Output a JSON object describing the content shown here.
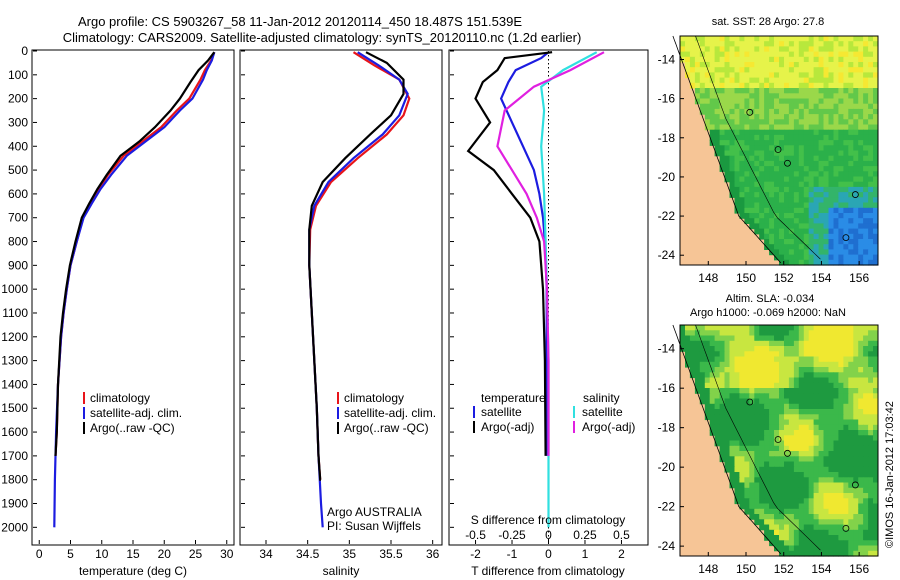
{
  "header": {
    "title_line1": "Argo profile: CS 5903267_58 11-Jan-2012 20120114_450 18.487S 151.539E",
    "title_line2": "Climatology: CARS2009. Satellite-adjusted climatology: synTS_20120110.nc (1.2d earlier)"
  },
  "colors": {
    "climatology": "#e8141a",
    "satellite": "#1c1ce0",
    "argo": "#000000",
    "cyan": "#30e0e0",
    "magenta": "#e020e0",
    "land": "#f6c596"
  },
  "chart_data": [
    {
      "type": "line",
      "id": "temperature",
      "xlabel": "temperature (deg C)",
      "xlim": [
        -1,
        31
      ],
      "xticks": [
        0,
        5,
        10,
        15,
        20,
        25,
        30
      ],
      "xticklabels": [
        "0",
        "5",
        "10",
        "15",
        "20",
        "25",
        "30"
      ],
      "ylim": [
        0,
        2070
      ],
      "yticks": [
        0,
        100,
        200,
        300,
        400,
        500,
        600,
        700,
        800,
        900,
        1000,
        1100,
        1200,
        1300,
        1400,
        1500,
        1600,
        1700,
        1800,
        1900,
        2000
      ],
      "yticklabels": [
        "0",
        "100",
        "200",
        "300",
        "400",
        "500",
        "600",
        "700",
        "800",
        "900",
        "1000",
        "1100",
        "1200",
        "1300",
        "1400",
        "1500",
        "1600",
        "1700",
        "1800",
        "1900",
        "2000"
      ],
      "legend": [
        "climatology",
        "satellite-adj. clim.",
        "Argo(..raw -QC)"
      ],
      "series": [
        {
          "name": "climatology",
          "color": "climatology",
          "x": [
            28.0,
            27.5,
            26.5,
            25.8,
            24.0,
            22.0,
            19.5,
            16.5,
            13.5,
            11.0,
            9.5,
            8.2,
            7.0,
            6.0,
            5.0,
            4.4,
            3.9,
            3.5,
            3.0,
            2.8,
            2.6,
            2.6
          ],
          "y": [
            5,
            40,
            80,
            120,
            200,
            250,
            320,
            380,
            440,
            520,
            580,
            640,
            700,
            800,
            900,
            1000,
            1100,
            1200,
            1400,
            1600,
            1700,
            1700
          ]
        },
        {
          "name": "satellite",
          "color": "satellite",
          "x": [
            28.0,
            27.6,
            26.8,
            26.2,
            24.5,
            22.5,
            20.0,
            17.0,
            14.0,
            11.5,
            9.8,
            8.4,
            7.1,
            6.0,
            5.0,
            4.4,
            3.9,
            3.5,
            3.0,
            2.7,
            2.5,
            2.4
          ],
          "y": [
            5,
            40,
            80,
            120,
            200,
            250,
            320,
            380,
            440,
            520,
            580,
            640,
            700,
            800,
            900,
            1000,
            1100,
            1200,
            1400,
            1600,
            1800,
            2000
          ]
        },
        {
          "name": "argo",
          "color": "argo",
          "x": [
            28.0,
            27.0,
            25.5,
            24.2,
            22.5,
            21.0,
            18.5,
            16.0,
            13.0,
            10.8,
            9.3,
            8.0,
            6.8,
            5.8,
            4.9,
            4.3,
            3.8,
            3.4,
            3.0,
            2.8,
            2.6,
            2.6
          ],
          "y": [
            5,
            40,
            80,
            130,
            200,
            250,
            320,
            380,
            440,
            520,
            580,
            640,
            700,
            800,
            900,
            1000,
            1100,
            1200,
            1400,
            1600,
            1700,
            1700
          ]
        }
      ]
    },
    {
      "type": "line",
      "id": "salinity",
      "xlabel": "salinity",
      "xlim": [
        33.7,
        36.1
      ],
      "xticks": [
        34,
        34.5,
        35,
        35.5,
        36
      ],
      "xticklabels": [
        "34",
        "34.5",
        "35",
        "35.5",
        "36"
      ],
      "legend": [
        "climatology",
        "satellite-adj. clim.",
        "Argo(..raw -QC)"
      ],
      "annotation_line1": "Argo AUSTRALIA",
      "annotation_line2": "PI: Susan Wijffels",
      "series": [
        {
          "name": "climatology",
          "color": "climatology",
          "x": [
            35.05,
            35.3,
            35.6,
            35.72,
            35.65,
            35.45,
            35.1,
            34.78,
            34.6,
            34.53,
            34.52,
            34.55,
            34.58,
            34.61,
            34.63,
            34.65,
            34.66
          ],
          "y": [
            5,
            60,
            120,
            200,
            270,
            350,
            450,
            550,
            650,
            750,
            900,
            1100,
            1300,
            1500,
            1700,
            1800,
            1800
          ]
        },
        {
          "name": "satellite",
          "color": "satellite",
          "x": [
            35.1,
            35.35,
            35.6,
            35.7,
            35.6,
            35.4,
            35.05,
            34.75,
            34.58,
            34.52,
            34.52,
            34.55,
            34.58,
            34.61,
            34.63,
            34.66,
            34.68
          ],
          "y": [
            5,
            60,
            120,
            180,
            270,
            350,
            450,
            550,
            650,
            750,
            900,
            1100,
            1300,
            1500,
            1700,
            1900,
            2000
          ]
        },
        {
          "name": "argo",
          "color": "argo",
          "x": [
            35.2,
            35.45,
            35.65,
            35.65,
            35.5,
            35.25,
            34.95,
            34.68,
            34.55,
            34.52,
            34.52,
            34.55,
            34.58,
            34.61,
            34.63,
            34.65,
            34.66
          ],
          "y": [
            5,
            50,
            120,
            180,
            270,
            350,
            450,
            550,
            650,
            750,
            900,
            1100,
            1300,
            1500,
            1700,
            1800,
            1800
          ]
        }
      ]
    },
    {
      "type": "line",
      "id": "difference",
      "xlabel": "T difference from climatology",
      "xlabel_top": "S difference from climatology",
      "xlim": [
        -2.7,
        2.7
      ],
      "xticks": [
        -2,
        -1,
        0,
        1,
        2
      ],
      "xticklabels": [
        "-2",
        "-1",
        "0",
        "1",
        "2"
      ],
      "sticks": [
        -0.5,
        -0.25,
        0,
        0.25,
        0.5
      ],
      "sticklabels": [
        "-0.5",
        "-0.25",
        "0",
        "0.25",
        "0.5"
      ],
      "legend_titles": [
        "temperature",
        "salinity"
      ],
      "legend": [
        "satellite",
        "Argo(-adj)",
        "satellite",
        "Argo(-adj)"
      ],
      "series": [
        {
          "name": "T satellite",
          "color": "satellite",
          "x": [
            0.0,
            -0.2,
            -0.9,
            -1.1,
            -1.3,
            -1.0,
            -0.7,
            -0.4,
            -0.25,
            -0.15,
            -0.1,
            -0.05,
            -0.05,
            -0.03
          ],
          "y": [
            5,
            30,
            80,
            130,
            200,
            300,
            400,
            500,
            600,
            700,
            800,
            1000,
            1300,
            1700
          ]
        },
        {
          "name": "T argo",
          "color": "argo",
          "x": [
            0.1,
            -1.2,
            -1.4,
            -1.8,
            -2.0,
            -1.6,
            -2.2,
            -1.5,
            -1.0,
            -0.5,
            -0.25,
            -0.15,
            -0.1,
            -0.08
          ],
          "y": [
            5,
            30,
            80,
            130,
            200,
            300,
            420,
            500,
            600,
            700,
            800,
            1000,
            1300,
            1700
          ]
        },
        {
          "name": "S satellite",
          "color": "cyan",
          "x": [
            0.33,
            0.1,
            -0.05,
            -0.03,
            -0.05,
            -0.03,
            -0.02,
            -0.01,
            0.0,
            0.0,
            0.0,
            0.0
          ],
          "y": [
            5,
            80,
            150,
            250,
            400,
            600,
            800,
            1000,
            1300,
            1600,
            1900,
            2000
          ]
        },
        {
          "name": "S argo",
          "color": "magenta",
          "x": [
            0.38,
            0.15,
            -0.1,
            -0.3,
            -0.35,
            -0.25,
            -0.15,
            -0.08,
            -0.03,
            -0.01,
            0.0,
            0.0
          ],
          "y": [
            5,
            80,
            150,
            250,
            400,
            500,
            600,
            700,
            800,
            1000,
            1300,
            1700
          ]
        }
      ]
    },
    {
      "type": "heatmap",
      "id": "sst_map",
      "title": "sat. SST: 28 Argo: 27.8",
      "xlim": [
        146.5,
        157
      ],
      "ylim": [
        -24.5,
        -12.8
      ],
      "xticks": [
        148,
        150,
        152,
        154,
        156
      ],
      "xticklabels": [
        "148",
        "150",
        "152",
        "154",
        "156"
      ],
      "yticks": [
        -14,
        -16,
        -18,
        -20,
        -22,
        -24
      ],
      "yticklabels": [
        "-14",
        "-16",
        "-18",
        "-20",
        "-22",
        "-24"
      ]
    },
    {
      "type": "heatmap",
      "id": "sla_map",
      "title": "Altim. SLA: -0.034",
      "subtitle": "Argo h1000: -0.069 h2000: NaN",
      "xlim": [
        146.5,
        157
      ],
      "ylim": [
        -24.5,
        -12.8
      ],
      "xticks": [
        148,
        150,
        152,
        154,
        156
      ],
      "xticklabels": [
        "148",
        "150",
        "152",
        "154",
        "156"
      ],
      "yticks": [
        -14,
        -16,
        -18,
        -20,
        -22,
        -24
      ],
      "yticklabels": [
        "-14",
        "-16",
        "-18",
        "-20",
        "-22",
        "-24"
      ]
    }
  ],
  "watermark": "©IMOS 16-Jan-2012 17:03:42"
}
